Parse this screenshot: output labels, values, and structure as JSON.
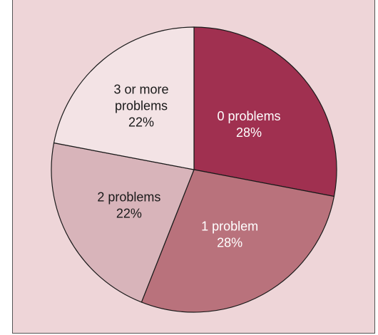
{
  "chart_data": {
    "type": "pie",
    "title": "",
    "start_position": "12 o'clock",
    "direction": "clockwise",
    "slices": [
      {
        "label": "0 problems",
        "value": 28,
        "percent_label": "28%",
        "color": "#a03050",
        "text_color": "#ffffff"
      },
      {
        "label": "1 problem",
        "value": 28,
        "percent_label": "28%",
        "color": "#b9727c",
        "text_color": "#ffffff"
      },
      {
        "label": "2 problems",
        "value": 22,
        "percent_label": "22%",
        "color": "#d8b4ba",
        "text_color": "#1a1a1a"
      },
      {
        "label": "3 or more problems",
        "value": 22,
        "percent_label": "22%",
        "color": "#f3e3e5",
        "text_color": "#1a1a1a"
      }
    ]
  },
  "colors": {
    "background": "#eed5d8",
    "slice_border": "#1a1a1a"
  }
}
